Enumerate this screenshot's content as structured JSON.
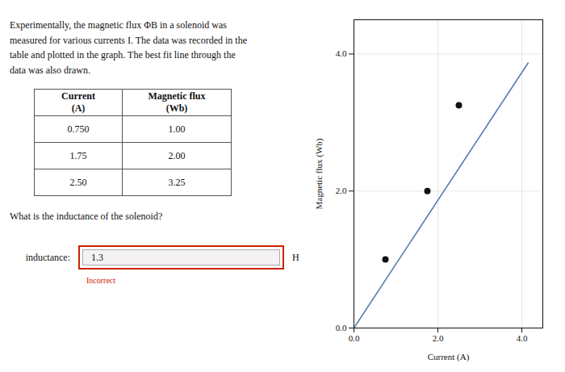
{
  "text_lines": [
    "Experimentally, the magnetic flux ΦB in a solenoid was",
    "measured for various currents I. The data was recorded in the",
    "table and plotted in the graph. The best fit line through the",
    "data was also drawn."
  ],
  "table": {
    "header": [
      [
        "Current",
        "(A)"
      ],
      [
        "Magnetic flux",
        "(Wb)"
      ]
    ],
    "rows": [
      [
        "0.750",
        "1.00"
      ],
      [
        "1.75",
        "2.00"
      ],
      [
        "2.50",
        "3.25"
      ]
    ]
  },
  "question": "What is the inductance of the solenoid?",
  "answer": {
    "label": "inductance:",
    "value": "1.3",
    "unit": "H",
    "feedback": "Incorrect",
    "color": "#cc2200"
  },
  "chart_data": {
    "type": "scatter",
    "xlabel": "Current (A)",
    "ylabel": "Magnetic flux (Wb)",
    "series": [
      {
        "type": "line",
        "color": "#5080b0",
        "x": [
          0.0,
          4.15
        ],
        "values": [
          0.0,
          3.87
        ]
      },
      {
        "type": "scatter",
        "color": "#111111",
        "x": [
          0.75,
          1.75,
          2.5
        ],
        "values": [
          1.0,
          2.0,
          3.25
        ]
      }
    ],
    "xlim": [
      0,
      4.5
    ],
    "ylim": [
      0,
      4.5
    ],
    "xticks": [
      0,
      2,
      4
    ],
    "yticks": [
      0,
      2,
      4
    ],
    "grid": true
  }
}
